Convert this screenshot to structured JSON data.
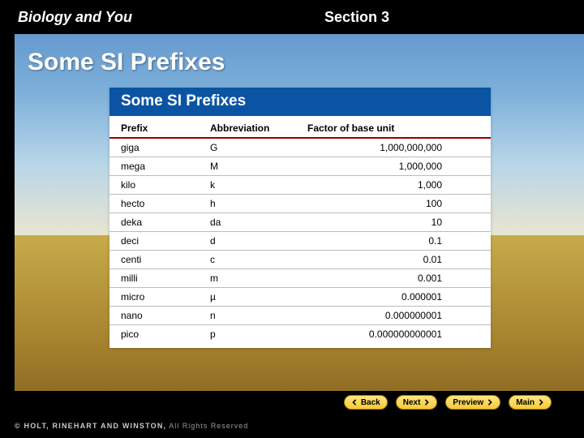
{
  "header": {
    "chapter_title": "Biology and You",
    "section_label": "Section 3"
  },
  "slide": {
    "title": "Some SI Prefixes"
  },
  "card": {
    "title": "Some SI Prefixes",
    "header_bg": "#0b54a3",
    "header_rule_color": "#9a0000",
    "columns": [
      "Prefix",
      "Abbreviation",
      "Factor of base unit"
    ],
    "rows": [
      {
        "prefix": "giga",
        "abbr": "G",
        "factor": "1,000,000,000"
      },
      {
        "prefix": "mega",
        "abbr": "M",
        "factor": "1,000,000"
      },
      {
        "prefix": "kilo",
        "abbr": "k",
        "factor": "1,000"
      },
      {
        "prefix": "hecto",
        "abbr": "h",
        "factor": "100"
      },
      {
        "prefix": "deka",
        "abbr": "da",
        "factor": "10"
      },
      {
        "prefix": "deci",
        "abbr": "d",
        "factor": "0.1"
      },
      {
        "prefix": "centi",
        "abbr": "c",
        "factor": "0.01"
      },
      {
        "prefix": "milli",
        "abbr": "m",
        "factor": "0.001"
      },
      {
        "prefix": "micro",
        "abbr": "µ",
        "factor": "0.000001"
      },
      {
        "prefix": "nano",
        "abbr": "n",
        "factor": "0.000000001"
      },
      {
        "prefix": "pico",
        "abbr": "p",
        "factor": "0.000000000001"
      }
    ]
  },
  "nav": {
    "back": "Back",
    "next": "Next",
    "preview": "Preview",
    "main": "Main"
  },
  "footer": {
    "publisher": "© HOLT, RINEHART AND WINSTON,",
    "rights": " All Rights Reserved"
  },
  "colors": {
    "accent_blue": "#0b54a3",
    "button_gold": "#f7c939",
    "rule_red": "#9a0000"
  }
}
